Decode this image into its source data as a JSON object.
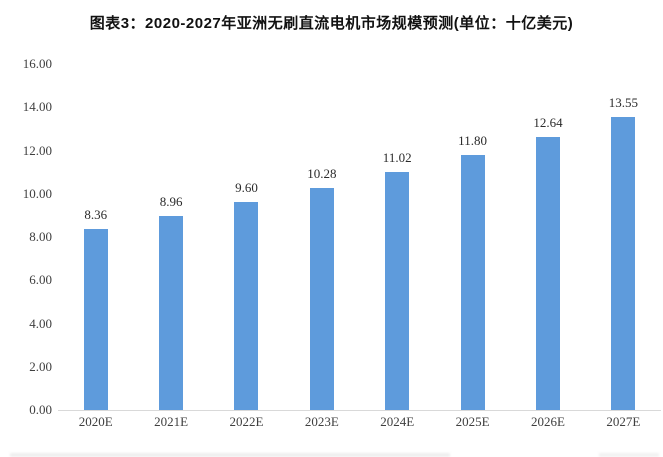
{
  "title": "图表3：2020-2027年亚洲无刷直流电机市场规模预测(单位：十亿美元)",
  "chart_data": {
    "type": "bar",
    "title": "图表3：2020-2027年亚洲无刷直流电机市场规模预测(单位：十亿美元)",
    "categories": [
      "2020E",
      "2021E",
      "2022E",
      "2023E",
      "2024E",
      "2025E",
      "2026E",
      "2027E"
    ],
    "values": [
      8.36,
      8.96,
      9.6,
      10.28,
      11.02,
      11.8,
      12.64,
      13.55
    ],
    "data_labels": [
      "8.36",
      "8.96",
      "9.60",
      "10.28",
      "11.02",
      "11.80",
      "12.64",
      "13.55"
    ],
    "xlabel": "",
    "ylabel": "",
    "ylim": [
      0,
      16
    ],
    "ytick_step": 2,
    "ytick_labels": [
      "0.00",
      "2.00",
      "4.00",
      "6.00",
      "8.00",
      "10.00",
      "12.00",
      "14.00",
      "16.00"
    ],
    "grid": false,
    "legend": "none",
    "bar_color": "#5e9bdc",
    "axis_line_color": "#d9d9d9",
    "tick_label_color": "#3f3f3f",
    "data_label_color": "#2b2b2b",
    "title_color": "#111111"
  }
}
